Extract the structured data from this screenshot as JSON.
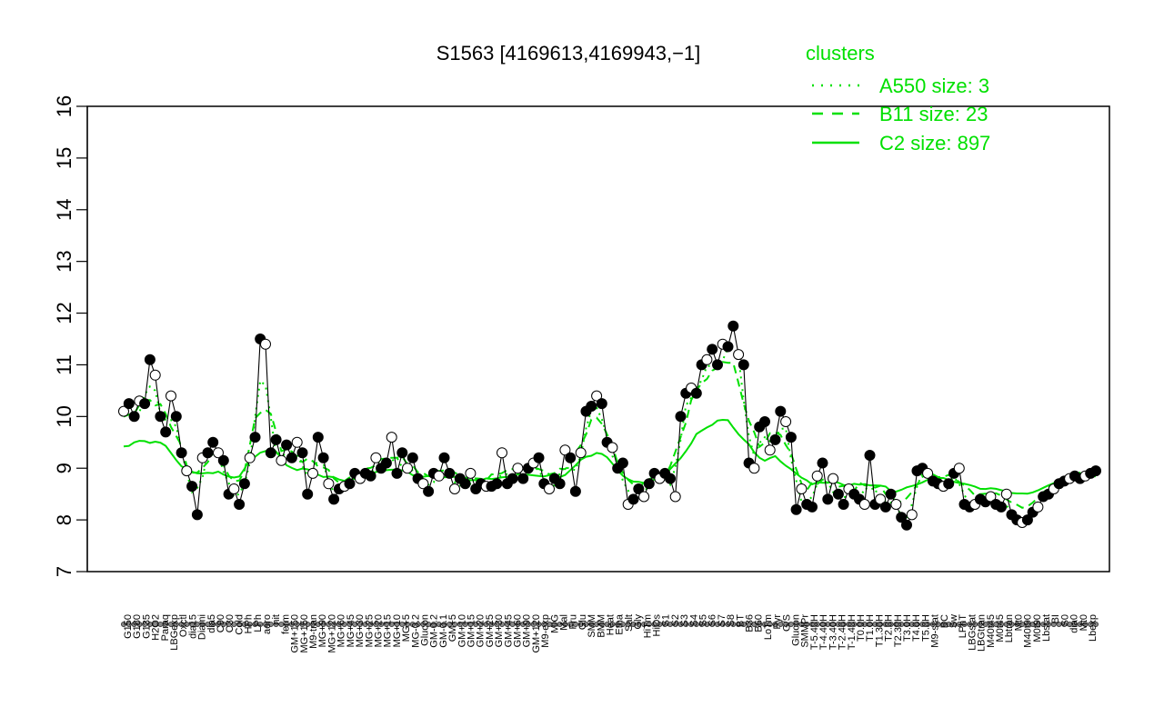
{
  "chart_data": {
    "type": "line",
    "title": "S1563 [4169613,4169943,−1]",
    "xlabel": "",
    "ylabel": "",
    "ylim": [
      7,
      16
    ],
    "yticks": [
      7,
      8,
      9,
      10,
      11,
      12,
      13,
      14,
      15,
      16
    ],
    "grid": false,
    "legend": {
      "title": "clusters",
      "placement": "top-right",
      "entries": [
        {
          "label": "A550 size: 3",
          "style": "dotted"
        },
        {
          "label": "B11 size: 23",
          "style": "dashed"
        },
        {
          "label": "C2 size: 897",
          "style": "solid"
        }
      ]
    },
    "colors": {
      "cluster": "#00e000",
      "points_filled": "#000000",
      "points_open": "#ffffff"
    },
    "x_tick_labels": [
      "G150",
      "G180",
      "G135",
      "H2O2",
      "Paraq",
      "LBGexp",
      "Oxctl",
      "dia15",
      "Diami",
      "dia5",
      "C90",
      "C30",
      "Cold",
      "HPh",
      "LPh",
      "aero",
      "nit",
      "ferm",
      "GM+150",
      "MG+150",
      "M9-tran",
      "MG+90",
      "MG+120",
      "MG+60",
      "MG+45",
      "MG+30",
      "MG+25",
      "MG+20",
      "MG+15",
      "MG+10",
      "MG+5",
      "MG-0.2",
      "Glucon",
      "GM-0.2",
      "GM-0.1",
      "GM+5",
      "GM+10",
      "GM+15",
      "GM+20",
      "GM+25",
      "GM+30",
      "GM+45",
      "GM+60",
      "GM+90",
      "GM+120",
      "M9-exp",
      "M/G",
      "Mal",
      "Fru",
      "Glu",
      "SMM",
      "BMM",
      "Heat",
      "Etha",
      "Salt",
      "Gly",
      "HiTm",
      "HiOs",
      "S1",
      "S2",
      "S3",
      "S4",
      "S5",
      "S6",
      "S7",
      "S8",
      "BT",
      "B36",
      "B60",
      "LoTm",
      "Pyr",
      "G/S",
      "Glucon",
      "SMMPr",
      "T-5.40H",
      "T-4.40H",
      "T-3.40H",
      "T-2.40H",
      "T-1.40H",
      "T0.0H",
      "T1.0H",
      "T1.30H",
      "T2.0H",
      "T2.30H",
      "T3.0H",
      "T4.0H",
      "T5.0H",
      "M9-stat",
      "BC",
      "Sw",
      "LPhT",
      "LBGstat",
      "LBGtran",
      "M40t45",
      "M0t45",
      "Lbtran",
      "Mt0",
      "M40t90",
      "M0t90",
      "Lbstat",
      "BI",
      "S0",
      "dia0",
      "Mt0",
      "Lbexp"
    ],
    "series": [
      {
        "values": [
          10.1,
          10.25,
          10.0,
          10.3,
          10.25,
          11.1,
          10.8,
          10.0,
          9.7,
          10.4,
          10.0,
          9.3,
          8.95,
          8.65,
          8.1,
          9.2,
          9.3,
          9.5,
          9.3,
          9.15,
          8.5,
          8.6,
          8.3,
          8.7,
          9.2,
          9.6,
          11.5,
          11.4,
          9.3,
          9.55,
          9.15,
          9.45,
          9.2,
          9.5,
          9.3,
          8.5,
          8.9,
          9.6,
          9.2,
          8.7,
          8.4,
          8.6,
          8.65,
          8.7,
          8.9,
          8.8,
          8.9,
          8.85,
          9.2,
          9.0,
          9.1,
          9.6,
          8.9,
          9.3,
          9.0,
          9.2,
          8.8,
          8.7,
          8.55,
          8.9,
          8.85,
          9.2,
          8.9,
          8.6,
          8.8,
          8.7,
          8.9,
          8.6,
          8.7,
          8.65,
          8.65,
          8.7,
          9.3,
          8.7,
          8.8,
          9.0,
          8.8,
          9.0,
          9.1,
          9.2,
          8.7,
          8.6,
          8.8,
          8.7,
          9.35,
          9.2,
          8.55,
          9.3,
          10.1,
          10.2,
          10.4,
          10.25,
          9.5,
          9.4,
          9.0,
          9.1,
          8.3,
          8.4,
          8.6,
          8.45,
          8.7,
          8.9,
          8.8,
          8.9,
          8.8,
          8.45,
          10.0,
          10.45,
          10.55,
          10.45,
          11.0,
          11.1,
          11.3,
          11.0,
          11.4,
          11.35,
          11.75,
          11.2,
          11.0,
          9.1,
          9.0,
          9.8,
          9.9,
          9.35,
          9.55,
          10.1,
          9.9,
          9.6,
          8.2,
          8.6,
          8.3,
          8.25,
          8.85,
          9.1,
          8.4,
          8.8,
          8.5,
          8.3,
          8.6,
          8.5,
          8.4,
          8.3,
          9.25,
          8.3,
          8.4,
          8.25,
          8.5,
          8.3,
          8.05,
          7.9,
          8.1,
          8.95,
          9.0,
          8.9,
          8.75,
          8.7,
          8.65,
          8.7,
          8.9,
          9.0,
          8.3,
          8.25,
          8.3,
          8.4,
          8.35,
          8.45,
          8.3,
          8.25,
          8.5,
          8.1,
          8.0,
          7.95,
          8.0,
          8.15,
          8.25,
          8.45,
          8.5,
          8.6,
          8.7,
          8.75,
          8.8,
          8.85,
          8.8,
          8.85,
          8.9,
          8.95
        ]
      }
    ]
  }
}
